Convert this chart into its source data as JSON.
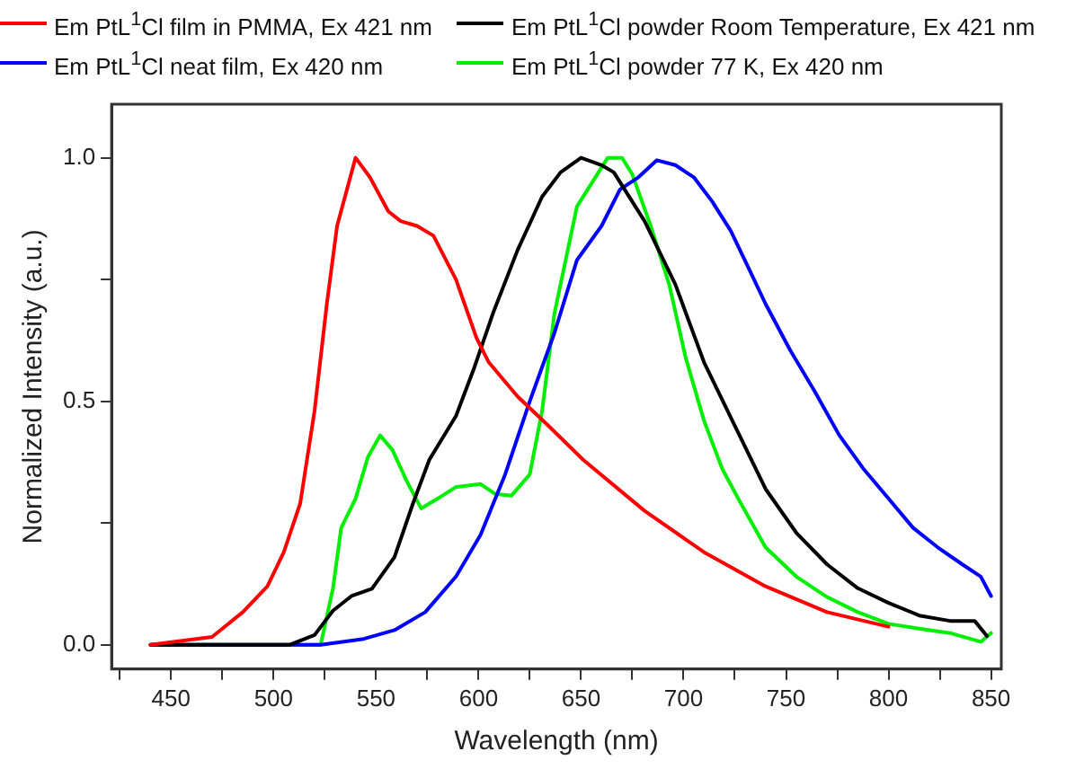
{
  "chart_data": {
    "type": "line",
    "xlabel": "Wavelength (nm)",
    "ylabel": "Normalized Intensity (a.u.)",
    "xlim": [
      421,
      855
    ],
    "ylim": [
      -0.05,
      1.11
    ],
    "xticks": [
      {
        "value": 425,
        "label": null
      },
      450,
      {
        "value": 475,
        "label": null
      },
      500,
      {
        "value": 525,
        "label": null
      },
      550,
      {
        "value": 575,
        "label": null
      },
      600,
      {
        "value": 625,
        "label": null
      },
      650,
      {
        "value": 675,
        "label": null
      },
      700,
      {
        "value": 725,
        "label": null
      },
      750,
      {
        "value": 775,
        "label": null
      },
      800,
      {
        "value": 825,
        "label": null
      },
      850
    ],
    "yticks": [
      {
        "value": 0,
        "label": "0.0"
      },
      {
        "value": 0.25,
        "label": null
      },
      {
        "value": 0.5,
        "label": "0.5"
      },
      {
        "value": 0.75,
        "label": null
      },
      {
        "value": 1,
        "label": "1.0"
      }
    ],
    "grid": false,
    "legend": "top",
    "marker": "none",
    "line_style": "solid",
    "series": [
      {
        "name": "Em PtL$^{1}$Cl film in PMMA, Ex 421 nm",
        "color": "#ff0000",
        "x": [
          440,
          470,
          485,
          497,
          505,
          513,
          520,
          526,
          531,
          540,
          547,
          556,
          562,
          570,
          578,
          589,
          599,
          605,
          619,
          634,
          651,
          681,
          710,
          740,
          770,
          800
        ],
        "values": [
          0,
          0.016,
          0.067,
          0.12,
          0.19,
          0.29,
          0.48,
          0.7,
          0.86,
          1.0,
          0.96,
          0.89,
          0.87,
          0.86,
          0.84,
          0.75,
          0.63,
          0.58,
          0.51,
          0.45,
          0.38,
          0.275,
          0.19,
          0.12,
          0.067,
          0.037
        ]
      },
      {
        "name": "Em PtL$^{1}$Cl powder Room Temperature, Ex 421 nm",
        "color": "#000000",
        "x": [
          440,
          508,
          520,
          529,
          538,
          548,
          559,
          568,
          576,
          589,
          598,
          607,
          619,
          631,
          640,
          650,
          660,
          666,
          681,
          696,
          710,
          725,
          740,
          755,
          770,
          785,
          800,
          815,
          830,
          842,
          848
        ],
        "values": [
          0,
          0,
          0.02,
          0.07,
          0.1,
          0.115,
          0.18,
          0.29,
          0.38,
          0.47,
          0.57,
          0.68,
          0.81,
          0.92,
          0.97,
          1.0,
          0.985,
          0.97,
          0.87,
          0.74,
          0.58,
          0.45,
          0.32,
          0.23,
          0.165,
          0.116,
          0.086,
          0.06,
          0.049,
          0.049,
          0.018
        ]
      },
      {
        "name": "Em PtL$^{1}$Cl neat film, Ex 420 nm",
        "color": "#0000ff",
        "x": [
          440,
          523,
          544,
          559,
          574,
          589,
          601,
          613,
          625,
          637,
          648,
          660,
          669,
          678,
          687,
          696,
          705,
          714,
          723,
          731,
          740,
          752,
          764,
          776,
          788,
          800,
          812,
          824,
          836,
          845,
          850
        ],
        "values": [
          0,
          0,
          0.012,
          0.03,
          0.067,
          0.14,
          0.226,
          0.35,
          0.5,
          0.64,
          0.79,
          0.86,
          0.935,
          0.96,
          0.995,
          0.985,
          0.96,
          0.91,
          0.85,
          0.78,
          0.7,
          0.605,
          0.52,
          0.43,
          0.36,
          0.3,
          0.24,
          0.2,
          0.165,
          0.14,
          0.1
        ]
      },
      {
        "name": "Em PtL$^{1}$Cl powder 77 K, Ex 420 nm",
        "color": "#00ee00",
        "x": [
          440,
          523,
          529,
          533,
          540,
          546,
          552,
          558,
          565,
          572,
          580,
          589,
          601,
          608,
          616,
          625,
          631,
          637,
          643,
          648,
          657,
          663,
          670,
          675,
          684,
          693,
          701,
          710,
          719,
          728,
          740,
          755,
          770,
          785,
          800,
          815,
          830,
          845,
          850
        ],
        "values": [
          0,
          0,
          0.116,
          0.24,
          0.3,
          0.385,
          0.43,
          0.4,
          0.336,
          0.28,
          0.3,
          0.324,
          0.33,
          0.31,
          0.306,
          0.35,
          0.48,
          0.68,
          0.8,
          0.9,
          0.96,
          1.0,
          1.0,
          0.966,
          0.86,
          0.74,
          0.59,
          0.46,
          0.36,
          0.29,
          0.2,
          0.14,
          0.098,
          0.067,
          0.043,
          0.033,
          0.024,
          0.006,
          0.024
        ]
      }
    ]
  }
}
